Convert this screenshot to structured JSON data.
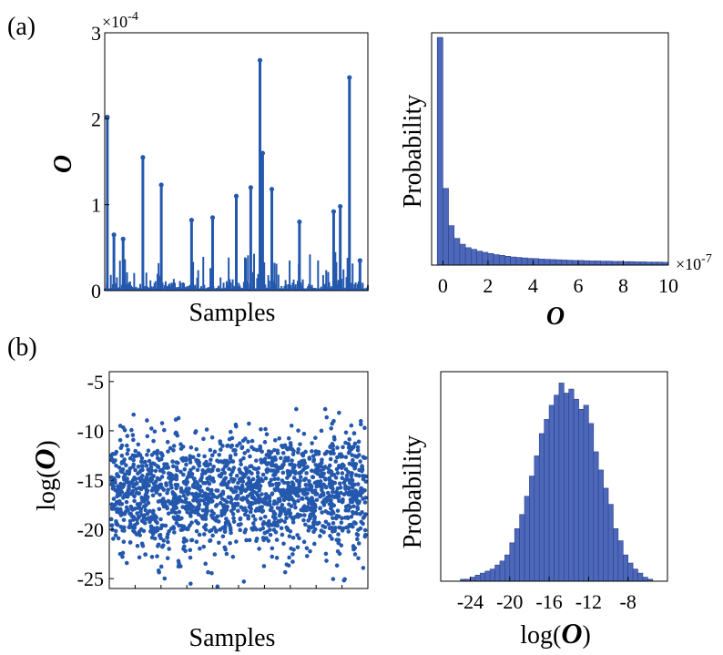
{
  "colors": {
    "data": "#2458ad",
    "bar_fill": "#4e68b9",
    "bar_edge": "#2a3f8f"
  },
  "chart_data": [
    {
      "type": "line",
      "panel": "(a)",
      "xlabel": "Samples",
      "ylabel": "O",
      "ylim": [
        0,
        3
      ],
      "yticks": [
        0,
        1,
        2,
        3
      ],
      "y_exponent": "×10^-4",
      "notable_spikes": [
        {
          "x": 0.01,
          "y": 2.02
        },
        {
          "x": 0.035,
          "y": 0.65
        },
        {
          "x": 0.07,
          "y": 0.6
        },
        {
          "x": 0.145,
          "y": 1.55
        },
        {
          "x": 0.215,
          "y": 1.23
        },
        {
          "x": 0.33,
          "y": 0.82
        },
        {
          "x": 0.41,
          "y": 0.85
        },
        {
          "x": 0.5,
          "y": 1.1
        },
        {
          "x": 0.555,
          "y": 1.2
        },
        {
          "x": 0.59,
          "y": 2.68
        },
        {
          "x": 0.6,
          "y": 1.6
        },
        {
          "x": 0.635,
          "y": 1.18
        },
        {
          "x": 0.74,
          "y": 0.8
        },
        {
          "x": 0.87,
          "y": 0.92
        },
        {
          "x": 0.895,
          "y": 0.98
        },
        {
          "x": 0.93,
          "y": 2.48
        },
        {
          "x": 0.97,
          "y": 0.35
        }
      ]
    },
    {
      "type": "bar",
      "panel": "(a)",
      "xlabel": "O",
      "ylabel": "Probability",
      "xlim": [
        -0.5,
        10
      ],
      "xticks": [
        0,
        2,
        4,
        6,
        8,
        10
      ],
      "x_exponent": "×10^-7",
      "bin_width": 0.25,
      "bin_start": -0.25,
      "values": [
        0.98,
        0.33,
        0.17,
        0.115,
        0.09,
        0.075,
        0.068,
        0.06,
        0.055,
        0.05,
        0.045,
        0.042,
        0.038,
        0.035,
        0.033,
        0.031,
        0.029,
        0.028,
        0.026,
        0.025,
        0.024,
        0.023,
        0.022,
        0.021,
        0.02,
        0.02,
        0.019,
        0.018,
        0.018,
        0.017,
        0.017,
        0.016,
        0.016,
        0.015,
        0.015,
        0.014,
        0.014,
        0.013,
        0.013,
        0.013,
        0.012
      ]
    },
    {
      "type": "scatter",
      "panel": "(b)",
      "xlabel": "Samples",
      "ylabel": "log(O)",
      "ylim": [
        -26,
        -4
      ],
      "yticks": [
        -25,
        -20,
        -15,
        -10,
        -5
      ],
      "y_mean": -16.5,
      "y_std": 3.0,
      "n_points": 1800
    },
    {
      "type": "bar",
      "panel": "(b)",
      "xlabel": "log(O)",
      "ylabel": "Probability",
      "xlim": [
        -27,
        -4
      ],
      "xticks": [
        -24,
        -20,
        -16,
        -12,
        -8
      ],
      "bin_width": 0.5,
      "bin_start": -26,
      "values": [
        0.0,
        0.0,
        0.01,
        0.01,
        0.02,
        0.03,
        0.04,
        0.05,
        0.06,
        0.08,
        0.1,
        0.13,
        0.19,
        0.26,
        0.33,
        0.42,
        0.52,
        0.62,
        0.73,
        0.8,
        0.87,
        0.92,
        0.98,
        0.93,
        0.95,
        0.9,
        0.85,
        0.87,
        0.78,
        0.64,
        0.55,
        0.46,
        0.38,
        0.26,
        0.2,
        0.13,
        0.09,
        0.06,
        0.04,
        0.02,
        0.01,
        0.0,
        0.0,
        0.0
      ]
    }
  ],
  "labels": {
    "panel_a": "(a)",
    "panel_b": "(b)",
    "exp_a_left": "×10",
    "exp_a_left_pow": "-4",
    "exp_a_right": "×10",
    "exp_a_right_pow": "-7",
    "samples": "Samples",
    "probability": "Probability",
    "o_symbol": "O",
    "log_prefix": "log(",
    "log_suffix": ")"
  }
}
